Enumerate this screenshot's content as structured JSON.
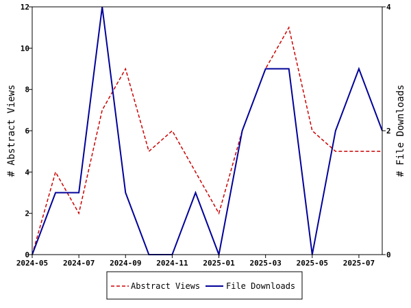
{
  "chart_data": {
    "type": "line",
    "x": [
      "2024-05",
      "2024-06",
      "2024-07",
      "2024-08",
      "2024-09",
      "2024-10",
      "2024-11",
      "2024-12",
      "2025-01",
      "2025-02",
      "2025-03",
      "2025-04",
      "2025-05",
      "2025-06",
      "2025-07",
      "2025-08"
    ],
    "x_tick_labels": [
      "2024-05",
      "2024-07",
      "2024-09",
      "2024-11",
      "2025-01",
      "2025-03",
      "2025-05",
      "2025-07"
    ],
    "series": [
      {
        "name": "Abstract Views",
        "axis": "left",
        "color": "#cc0000",
        "dash": "dashed",
        "values": [
          0,
          4,
          2,
          7,
          9,
          5,
          6,
          4,
          2,
          6,
          9,
          11,
          6,
          5,
          5,
          5
        ]
      },
      {
        "name": "File Downloads",
        "axis": "right",
        "color": "#000099",
        "dash": "solid",
        "values": [
          0,
          1,
          1,
          4,
          1,
          0,
          0,
          1,
          0,
          2,
          3,
          3,
          0,
          2,
          3,
          2
        ]
      }
    ],
    "ylabel": "# Abstract Views",
    "y2label": "# File Downloads",
    "ylim": [
      0,
      12
    ],
    "y_ticks": [
      0,
      2,
      4,
      6,
      8,
      10,
      12
    ],
    "y2lim": [
      0,
      4
    ],
    "y2_ticks": [
      0,
      2,
      4
    ],
    "grid": false,
    "legend_position": "bottom-center"
  }
}
